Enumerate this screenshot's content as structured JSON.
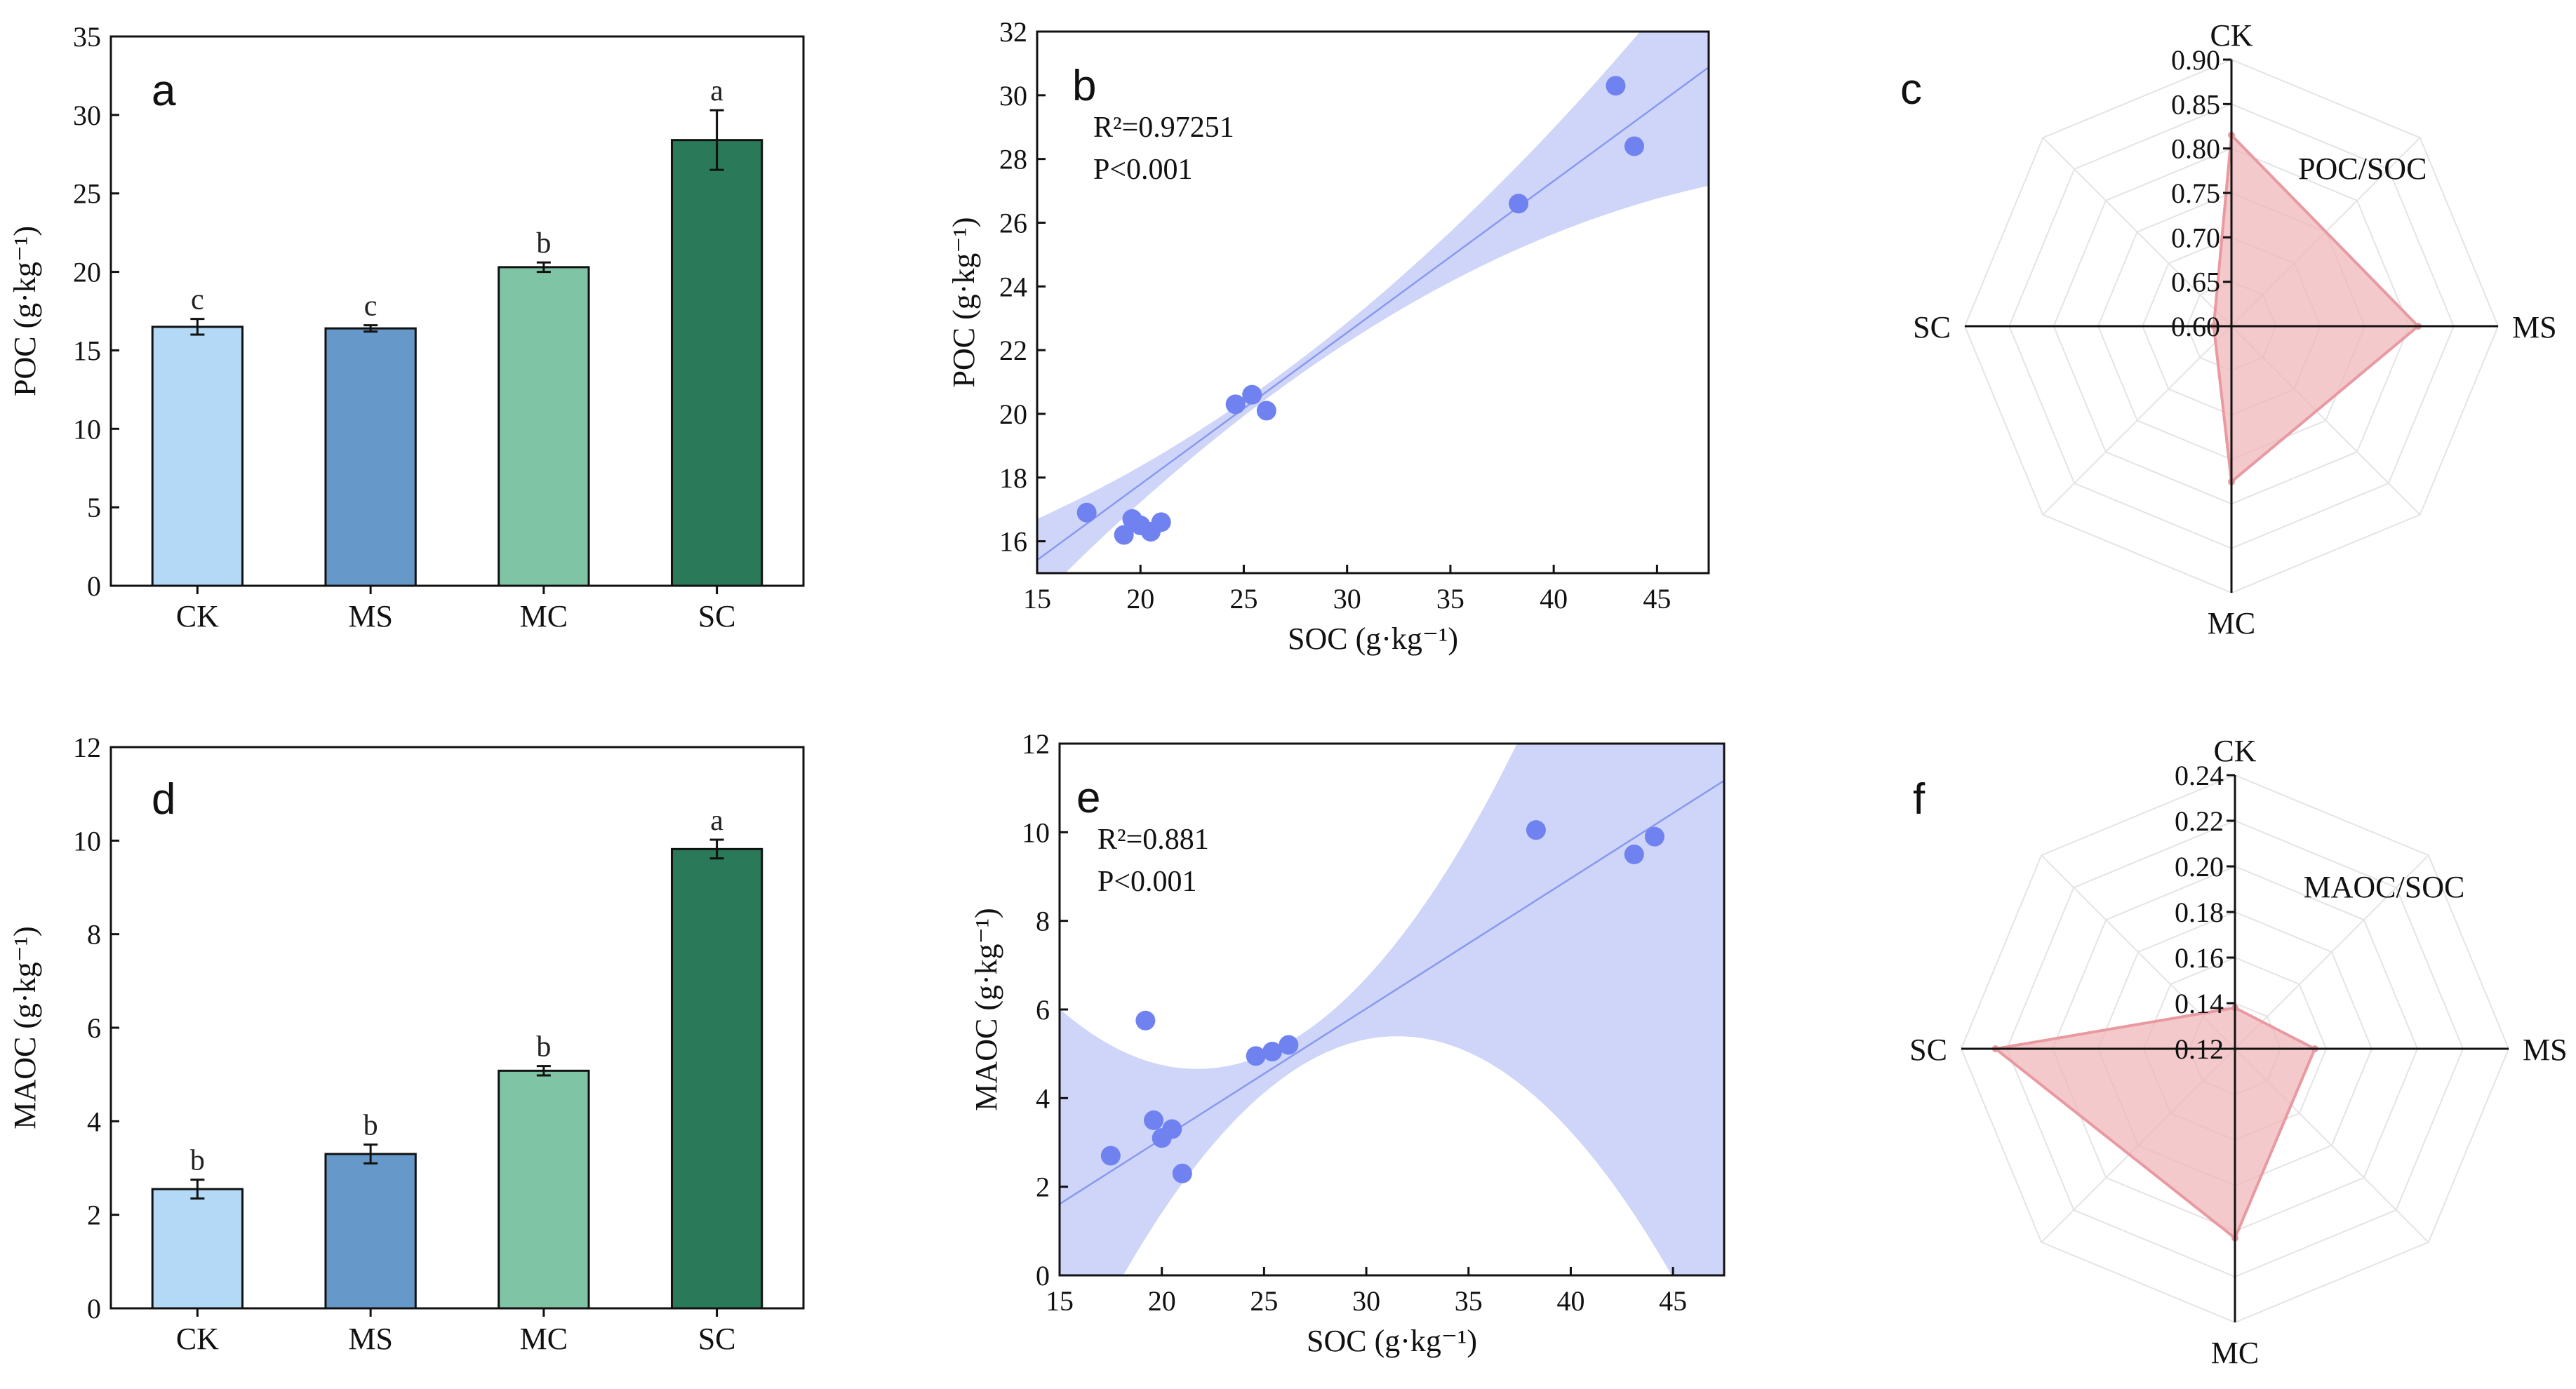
{
  "chart_data": [
    {
      "panel": "a",
      "type": "bar",
      "ylabel": "POC (g·kg⁻¹)",
      "ylim": [
        0,
        35
      ],
      "yticks": [
        0,
        5,
        10,
        15,
        20,
        25,
        30,
        35
      ],
      "categories": [
        "CK",
        "MS",
        "MC",
        "SC"
      ],
      "values": [
        16.5,
        16.4,
        20.3,
        28.4
      ],
      "errors": [
        0.5,
        0.2,
        0.3,
        1.9
      ],
      "significance": [
        "c",
        "c",
        "b",
        "a"
      ],
      "colors": [
        "#b3d9f7",
        "#6699c9",
        "#7fc4a5",
        "#2a7a5a"
      ]
    },
    {
      "panel": "b",
      "type": "scatter",
      "xlabel": "SOC (g·kg⁻¹)",
      "ylabel": "POC (g·kg⁻¹)",
      "xlim": [
        15,
        47.5
      ],
      "ylim": [
        15,
        32
      ],
      "xticks": [
        15,
        20,
        25,
        30,
        35,
        40,
        45
      ],
      "yticks": [
        16,
        18,
        20,
        22,
        24,
        26,
        28,
        30,
        32
      ],
      "r2": "R²=0.97251",
      "p": "P<0.001",
      "points": [
        [
          17.4,
          16.9
        ],
        [
          19.2,
          16.2
        ],
        [
          19.6,
          16.7
        ],
        [
          20.0,
          16.5
        ],
        [
          20.5,
          16.3
        ],
        [
          21.0,
          16.6
        ],
        [
          24.6,
          20.3
        ],
        [
          25.4,
          20.6
        ],
        [
          26.1,
          20.1
        ],
        [
          38.3,
          26.6
        ],
        [
          43.0,
          30.3
        ],
        [
          43.9,
          28.4
        ]
      ],
      "fit": {
        "slope": 0.476,
        "intercept": 8.27,
        "ci_min": 0.22,
        "ci_slope": 0.008
      }
    },
    {
      "panel": "c",
      "type": "radar",
      "axes": [
        "CK",
        "MS",
        "MC",
        "SC"
      ],
      "rlim": [
        0.6,
        0.9
      ],
      "ticks": [
        "0.60",
        "0.65",
        "0.70",
        "0.75",
        "0.80",
        "0.85",
        "0.90"
      ],
      "series_name": "POC/SOC",
      "values": [
        0.815,
        0.81,
        0.775,
        0.62
      ]
    },
    {
      "panel": "d",
      "type": "bar",
      "ylabel": "MAOC (g·kg⁻¹)",
      "ylim": [
        0,
        12
      ],
      "yticks": [
        0,
        2,
        4,
        6,
        8,
        10,
        12
      ],
      "categories": [
        "CK",
        "MS",
        "MC",
        "SC"
      ],
      "values": [
        2.55,
        3.3,
        5.08,
        9.82
      ],
      "errors": [
        0.2,
        0.2,
        0.1,
        0.2
      ],
      "significance": [
        "b",
        "b",
        "b",
        "a"
      ],
      "colors": [
        "#b3d9f7",
        "#6699c9",
        "#7fc4a5",
        "#2a7a5a"
      ]
    },
    {
      "panel": "e",
      "type": "scatter",
      "xlabel": "SOC (g·kg⁻¹)",
      "ylabel": "MAOC (g·kg⁻¹)",
      "xlim": [
        15,
        47.5
      ],
      "ylim": [
        0,
        12
      ],
      "xticks": [
        15,
        20,
        25,
        30,
        35,
        40,
        45
      ],
      "yticks": [
        0,
        2,
        4,
        6,
        8,
        10,
        12
      ],
      "r2": "R²=0.881",
      "p": "P<0.001",
      "points": [
        [
          17.5,
          2.7
        ],
        [
          19.2,
          5.75
        ],
        [
          19.6,
          3.5
        ],
        [
          20.0,
          3.1
        ],
        [
          20.5,
          3.3
        ],
        [
          21.0,
          2.3
        ],
        [
          24.6,
          4.95
        ],
        [
          25.4,
          5.05
        ],
        [
          26.2,
          5.2
        ],
        [
          38.3,
          10.05
        ],
        [
          43.1,
          9.5
        ],
        [
          44.1,
          9.9
        ]
      ],
      "fit": {
        "slope": 0.294,
        "intercept": -2.8,
        "ci_min": 0.35,
        "ci_slope": 0.03
      }
    },
    {
      "panel": "f",
      "type": "radar",
      "axes": [
        "CK",
        "MS",
        "MC",
        "SC"
      ],
      "rlim": [
        0.12,
        0.24
      ],
      "ticks": [
        "0.12",
        "0.14",
        "0.16",
        "0.18",
        "0.20",
        "0.22",
        "0.24"
      ],
      "series_name": "MAOC/SOC",
      "values": [
        0.138,
        0.155,
        0.203,
        0.225
      ]
    }
  ],
  "colors": {
    "scatter_point": "#6f82ef",
    "fit_line": "#8a99ee",
    "ci_band": "#c6cef7",
    "radar_fill": "#f0b4b8",
    "radar_stroke": "#e89aa0"
  }
}
